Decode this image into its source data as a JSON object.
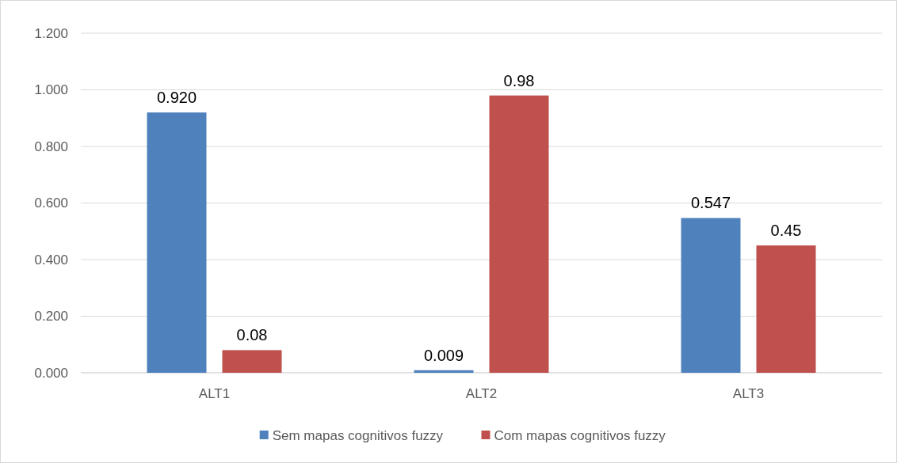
{
  "chart_data": {
    "type": "bar",
    "categories": [
      "ALT1",
      "ALT2",
      "ALT3"
    ],
    "series": [
      {
        "name": "Sem mapas cognitivos fuzzy",
        "color": "#4f81bd",
        "values": [
          0.92,
          0.009,
          0.547
        ],
        "value_labels": [
          "0.920",
          "0.009",
          "0.547"
        ]
      },
      {
        "name": "Com mapas cognitivos fuzzy",
        "color": "#c0504d",
        "values": [
          0.08,
          0.98,
          0.45
        ],
        "value_labels": [
          "0.08",
          "0.98",
          "0.45"
        ]
      }
    ],
    "ylim": [
      0,
      1.2
    ],
    "yticks": [
      {
        "value": 0,
        "label": "0.000"
      },
      {
        "value": 0.2,
        "label": "0.200"
      },
      {
        "value": 0.4,
        "label": "0.400"
      },
      {
        "value": 0.6,
        "label": "0.600"
      },
      {
        "value": 0.8,
        "label": "0.800"
      },
      {
        "value": 1,
        "label": "1.000"
      },
      {
        "value": 1.2,
        "label": "1.200"
      }
    ],
    "grid": "y",
    "legend": "bottom"
  }
}
